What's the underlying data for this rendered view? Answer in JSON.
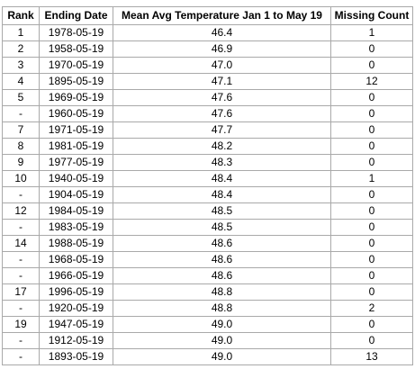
{
  "table": {
    "headers": [
      "Rank",
      "Ending Date",
      "Mean Avg Temperature Jan 1 to May 19",
      "Missing Count"
    ],
    "rows": [
      {
        "rank": "1",
        "date": "1978-05-19",
        "temp": "46.4",
        "missing": "1"
      },
      {
        "rank": "2",
        "date": "1958-05-19",
        "temp": "46.9",
        "missing": "0"
      },
      {
        "rank": "3",
        "date": "1970-05-19",
        "temp": "47.0",
        "missing": "0"
      },
      {
        "rank": "4",
        "date": "1895-05-19",
        "temp": "47.1",
        "missing": "12"
      },
      {
        "rank": "5",
        "date": "1969-05-19",
        "temp": "47.6",
        "missing": "0"
      },
      {
        "rank": "-",
        "date": "1960-05-19",
        "temp": "47.6",
        "missing": "0"
      },
      {
        "rank": "7",
        "date": "1971-05-19",
        "temp": "47.7",
        "missing": "0"
      },
      {
        "rank": "8",
        "date": "1981-05-19",
        "temp": "48.2",
        "missing": "0"
      },
      {
        "rank": "9",
        "date": "1977-05-19",
        "temp": "48.3",
        "missing": "0"
      },
      {
        "rank": "10",
        "date": "1940-05-19",
        "temp": "48.4",
        "missing": "1"
      },
      {
        "rank": "-",
        "date": "1904-05-19",
        "temp": "48.4",
        "missing": "0"
      },
      {
        "rank": "12",
        "date": "1984-05-19",
        "temp": "48.5",
        "missing": "0"
      },
      {
        "rank": "-",
        "date": "1983-05-19",
        "temp": "48.5",
        "missing": "0"
      },
      {
        "rank": "14",
        "date": "1988-05-19",
        "temp": "48.6",
        "missing": "0"
      },
      {
        "rank": "-",
        "date": "1968-05-19",
        "temp": "48.6",
        "missing": "0"
      },
      {
        "rank": "-",
        "date": "1966-05-19",
        "temp": "48.6",
        "missing": "0"
      },
      {
        "rank": "17",
        "date": "1996-05-19",
        "temp": "48.8",
        "missing": "0"
      },
      {
        "rank": "-",
        "date": "1920-05-19",
        "temp": "48.8",
        "missing": "2"
      },
      {
        "rank": "19",
        "date": "1947-05-19",
        "temp": "49.0",
        "missing": "0"
      },
      {
        "rank": "-",
        "date": "1912-05-19",
        "temp": "49.0",
        "missing": "0"
      },
      {
        "rank": "-",
        "date": "1893-05-19",
        "temp": "49.0",
        "missing": "13"
      }
    ]
  }
}
